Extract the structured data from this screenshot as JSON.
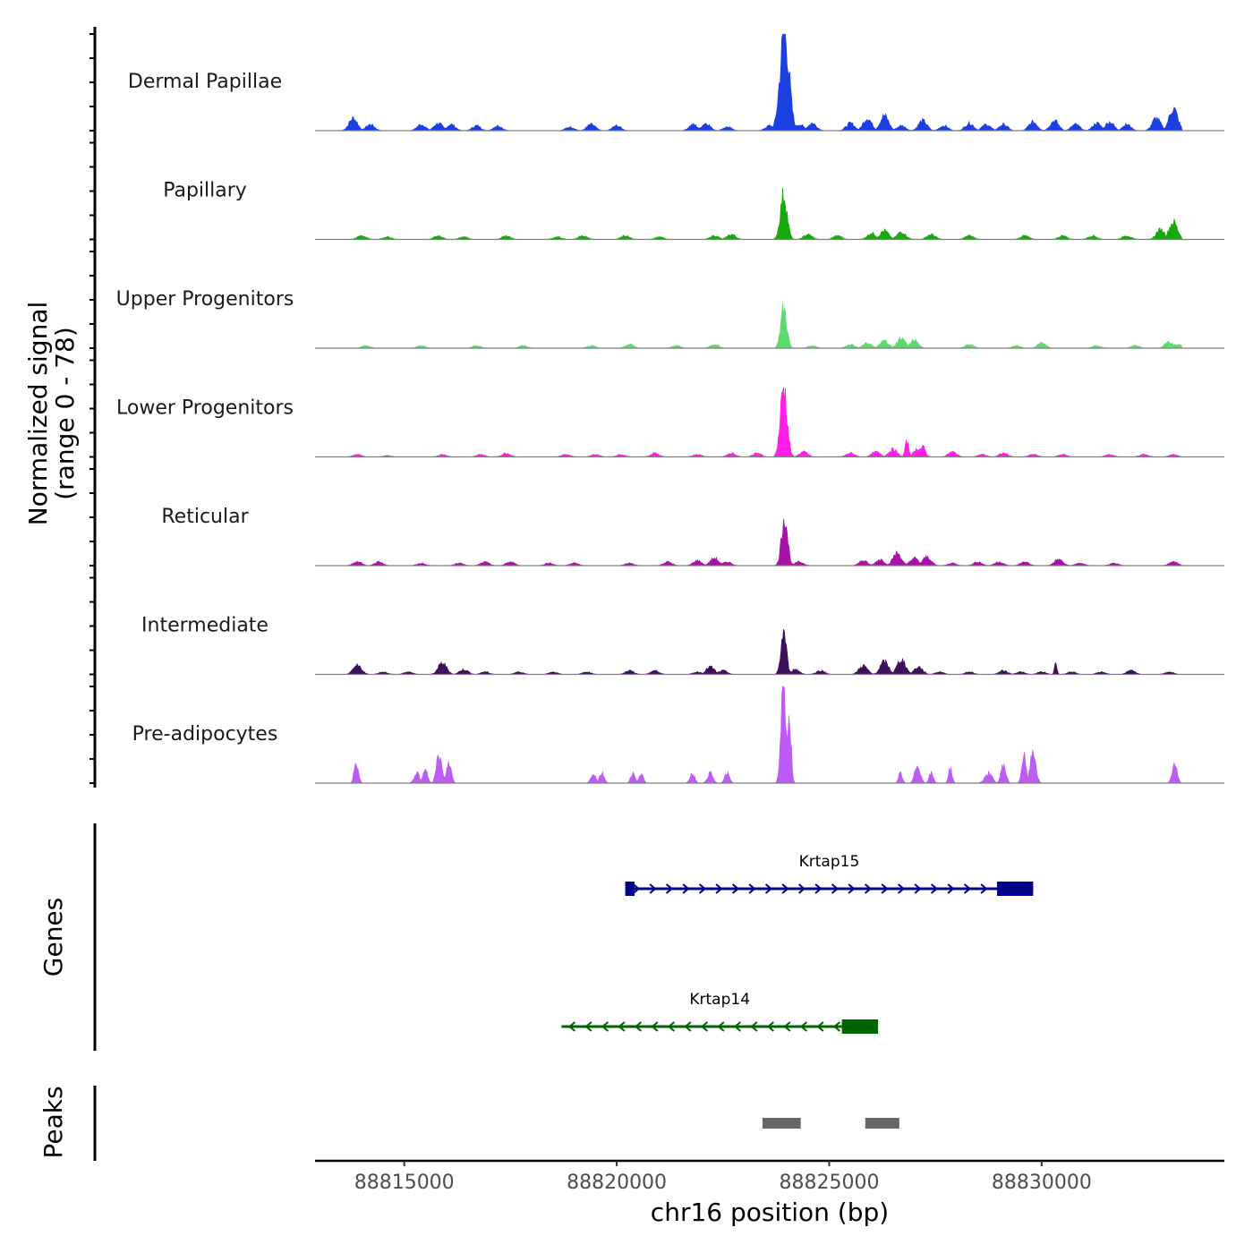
{
  "chart_data": {
    "type": "area",
    "title": "",
    "xlabel": "chr16 position (bp)",
    "ylabel": "Normalized signal",
    "ylabel_range": "(range 0 - 78)",
    "ylim": [
      0,
      78
    ],
    "xlim": [
      88812900,
      88834300
    ],
    "x_ticks": [
      88815000,
      88820000,
      88825000,
      88830000
    ],
    "x_tick_labels": [
      "88815000",
      "88820000",
      "88825000",
      "88830000"
    ],
    "panel_titles": {
      "genes": "Genes",
      "peaks": "Peaks"
    },
    "series": [
      {
        "name": "Dermal Papillae",
        "color": "#1C3FE0",
        "bg": [
          [
            88813800,
            10
          ],
          [
            88814200,
            5
          ],
          [
            88815400,
            5
          ],
          [
            88815800,
            6
          ],
          [
            88816100,
            5
          ],
          [
            88816700,
            4
          ],
          [
            88817200,
            4
          ],
          [
            88818900,
            3
          ],
          [
            88819400,
            5
          ],
          [
            88820000,
            4
          ],
          [
            88821800,
            5
          ],
          [
            88822100,
            6
          ],
          [
            88822600,
            3
          ],
          [
            88823600,
            4
          ],
          [
            88824300,
            5
          ],
          [
            88824600,
            6
          ],
          [
            88825500,
            6
          ],
          [
            88825900,
            10
          ],
          [
            88826300,
            12
          ],
          [
            88826700,
            4
          ],
          [
            88827200,
            8
          ],
          [
            88827700,
            4
          ],
          [
            88828300,
            6
          ],
          [
            88828700,
            5
          ],
          [
            88829100,
            5
          ],
          [
            88829800,
            7
          ],
          [
            88830300,
            8
          ],
          [
            88830800,
            5
          ],
          [
            88831300,
            6
          ],
          [
            88831600,
            7
          ],
          [
            88832000,
            5
          ],
          [
            88832700,
            10
          ],
          [
            88833100,
            18
          ]
        ],
        "peaks": [
          [
            88823950,
            78,
            150
          ]
        ]
      },
      {
        "name": "Papillary",
        "color": "#18A80F",
        "bg": [
          [
            88814000,
            3
          ],
          [
            88814600,
            2
          ],
          [
            88815800,
            3
          ],
          [
            88816400,
            2
          ],
          [
            88817400,
            3
          ],
          [
            88818600,
            2
          ],
          [
            88819200,
            3
          ],
          [
            88820200,
            3
          ],
          [
            88821000,
            2
          ],
          [
            88822300,
            3
          ],
          [
            88822700,
            4
          ],
          [
            88824500,
            4
          ],
          [
            88825200,
            3
          ],
          [
            88826000,
            5
          ],
          [
            88826300,
            7
          ],
          [
            88826700,
            6
          ],
          [
            88827400,
            4
          ],
          [
            88828300,
            3
          ],
          [
            88829600,
            3
          ],
          [
            88830500,
            3
          ],
          [
            88831200,
            3
          ],
          [
            88832000,
            3
          ],
          [
            88832800,
            8
          ],
          [
            88833100,
            14
          ]
        ],
        "peaks": [
          [
            88823930,
            36,
            110
          ]
        ]
      },
      {
        "name": "Upper Progenitors",
        "color": "#5CDB6A",
        "bg": [
          [
            88814100,
            2
          ],
          [
            88815400,
            2
          ],
          [
            88816700,
            2
          ],
          [
            88817800,
            2
          ],
          [
            88819400,
            2
          ],
          [
            88820300,
            3
          ],
          [
            88821400,
            2
          ],
          [
            88822300,
            3
          ],
          [
            88824600,
            2
          ],
          [
            88825500,
            3
          ],
          [
            88825900,
            4
          ],
          [
            88826300,
            6
          ],
          [
            88826700,
            8
          ],
          [
            88827000,
            6
          ],
          [
            88828300,
            3
          ],
          [
            88829400,
            2
          ],
          [
            88830000,
            4
          ],
          [
            88831300,
            2
          ],
          [
            88832200,
            2
          ],
          [
            88833000,
            5
          ],
          [
            88833200,
            3
          ]
        ],
        "peaks": [
          [
            88823930,
            32,
            100
          ]
        ]
      },
      {
        "name": "Lower Progenitors",
        "color": "#FF1FE8",
        "bg": [
          [
            88813900,
            2
          ],
          [
            88814600,
            1
          ],
          [
            88815900,
            2
          ],
          [
            88816800,
            2
          ],
          [
            88817400,
            3
          ],
          [
            88818800,
            2
          ],
          [
            88819500,
            2
          ],
          [
            88820100,
            2
          ],
          [
            88820900,
            3
          ],
          [
            88821900,
            2
          ],
          [
            88822700,
            3
          ],
          [
            88823300,
            3
          ],
          [
            88824400,
            4
          ],
          [
            88825500,
            3
          ],
          [
            88826100,
            4
          ],
          [
            88826500,
            6
          ],
          [
            88827100,
            7
          ],
          [
            88827900,
            4
          ],
          [
            88828600,
            2
          ],
          [
            88829100,
            3
          ],
          [
            88829800,
            2
          ],
          [
            88830500,
            2
          ],
          [
            88831600,
            2
          ],
          [
            88832400,
            2
          ],
          [
            88833100,
            2
          ]
        ],
        "peaks": [
          [
            88823930,
            56,
            110
          ],
          [
            88826830,
            12,
            60
          ],
          [
            88827200,
            8,
            90
          ]
        ]
      },
      {
        "name": "Reticular",
        "color": "#A612A6",
        "bg": [
          [
            88813900,
            3
          ],
          [
            88814400,
            3
          ],
          [
            88815400,
            2
          ],
          [
            88816300,
            2
          ],
          [
            88816900,
            3
          ],
          [
            88817500,
            3
          ],
          [
            88818400,
            2
          ],
          [
            88819000,
            2
          ],
          [
            88820300,
            2
          ],
          [
            88821200,
            3
          ],
          [
            88821900,
            4
          ],
          [
            88822300,
            6
          ],
          [
            88822600,
            3
          ],
          [
            88824300,
            3
          ],
          [
            88825800,
            4
          ],
          [
            88826200,
            5
          ],
          [
            88826600,
            10
          ],
          [
            88827000,
            6
          ],
          [
            88827300,
            7
          ],
          [
            88827900,
            2
          ],
          [
            88828500,
            3
          ],
          [
            88829000,
            3
          ],
          [
            88829600,
            3
          ],
          [
            88830400,
            5
          ],
          [
            88830900,
            2
          ],
          [
            88831700,
            2
          ],
          [
            88833100,
            3
          ]
        ],
        "peaks": [
          [
            88823950,
            40,
            100
          ]
        ]
      },
      {
        "name": "Intermediate",
        "color": "#3D0F5C",
        "bg": [
          [
            88813900,
            7
          ],
          [
            88814500,
            2
          ],
          [
            88815100,
            2
          ],
          [
            88815900,
            9
          ],
          [
            88816400,
            4
          ],
          [
            88816900,
            2
          ],
          [
            88817700,
            2
          ],
          [
            88818500,
            2
          ],
          [
            88819300,
            2
          ],
          [
            88820300,
            3
          ],
          [
            88820900,
            3
          ],
          [
            88821900,
            2
          ],
          [
            88822200,
            6
          ],
          [
            88822500,
            3
          ],
          [
            88824200,
            4
          ],
          [
            88824800,
            3
          ],
          [
            88825800,
            7
          ],
          [
            88826300,
            10
          ],
          [
            88826700,
            12
          ],
          [
            88827100,
            6
          ],
          [
            88827600,
            2
          ],
          [
            88828300,
            2
          ],
          [
            88829100,
            3
          ],
          [
            88829500,
            2
          ],
          [
            88830000,
            2
          ],
          [
            88830700,
            2
          ],
          [
            88831400,
            2
          ],
          [
            88832100,
            3
          ],
          [
            88833000,
            2
          ]
        ],
        "peaks": [
          [
            88823930,
            34,
            90
          ],
          [
            88830330,
            10,
            40
          ]
        ]
      },
      {
        "name": "Pre-adipocytes",
        "color": "#BD5CF5",
        "bg": [],
        "peaks": [
          [
            88823920,
            78,
            80
          ],
          [
            88824060,
            60,
            60
          ],
          [
            88813870,
            16,
            70
          ],
          [
            88815300,
            8,
            90
          ],
          [
            88815500,
            10,
            80
          ],
          [
            88815820,
            22,
            90
          ],
          [
            88816050,
            16,
            80
          ],
          [
            88819450,
            8,
            80
          ],
          [
            88819650,
            8,
            80
          ],
          [
            88820380,
            8,
            70
          ],
          [
            88820570,
            8,
            70
          ],
          [
            88821780,
            8,
            80
          ],
          [
            88822200,
            8,
            90
          ],
          [
            88822600,
            8,
            80
          ],
          [
            88826680,
            8,
            60
          ],
          [
            88827080,
            15,
            90
          ],
          [
            88827400,
            8,
            70
          ],
          [
            88827850,
            12,
            60
          ],
          [
            88828750,
            8,
            120
          ],
          [
            88829100,
            15,
            80
          ],
          [
            88829580,
            22,
            70
          ],
          [
            88829800,
            26,
            90
          ],
          [
            88833130,
            16,
            80
          ]
        ]
      }
    ],
    "genes": [
      {
        "name": "Krtap15",
        "start": 88820200,
        "end": 88829800,
        "strand": "+",
        "color": "#00008B",
        "exons": [
          [
            88820200,
            88820420
          ],
          [
            88828950,
            88829800
          ]
        ]
      },
      {
        "name": "Krtap14",
        "start": 88818700,
        "end": 88826150,
        "strand": "-",
        "color": "#006400",
        "exons": [
          [
            88825300,
            88826150
          ]
        ]
      }
    ],
    "peaks_track": {
      "color": "#666666",
      "regions": [
        [
          88823430,
          88824330
        ],
        [
          88825850,
          88826650
        ]
      ]
    }
  }
}
